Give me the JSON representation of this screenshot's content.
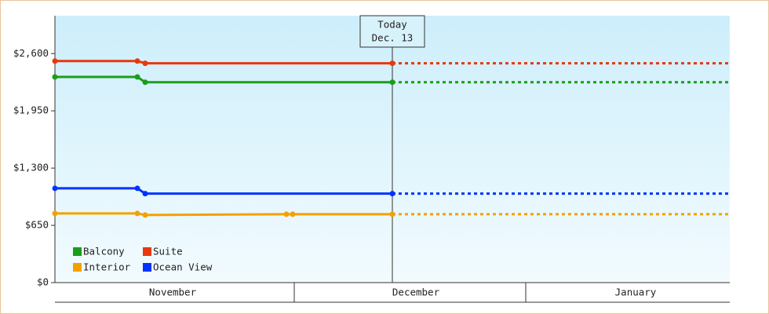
{
  "chart_data": {
    "type": "line",
    "xlim": [
      0,
      86
    ],
    "xticks": [
      {
        "value": 15,
        "label": "November"
      },
      {
        "value": 46,
        "label": "December"
      },
      {
        "value": 74,
        "label": "January"
      }
    ],
    "ylim": [
      0,
      3030
    ],
    "yticks": [
      {
        "value": 0,
        "label": "$0"
      },
      {
        "value": 650,
        "label": "$650"
      },
      {
        "value": 1300,
        "label": "$1,300"
      },
      {
        "value": 1950,
        "label": "$1,950"
      },
      {
        "value": 2600,
        "label": "$2,600"
      }
    ],
    "annotation": {
      "x": 43,
      "lines": [
        "Today",
        "Dec. 13"
      ]
    },
    "series": [
      {
        "name": "Balcony",
        "color": "#1a9e1a",
        "x": [
          0,
          10.5,
          11.5,
          43
        ],
        "values": [
          2335,
          2335,
          2275,
          2275
        ]
      },
      {
        "name": "Suite",
        "color": "#e8380d",
        "x": [
          0,
          10.5,
          11.5,
          43
        ],
        "values": [
          2515,
          2515,
          2490,
          2490
        ]
      },
      {
        "name": "Interior",
        "color": "#f5a000",
        "x": [
          0,
          10.5,
          11.5,
          29.5,
          30.3,
          43
        ],
        "values": [
          785,
          785,
          767,
          776,
          776,
          776
        ]
      },
      {
        "name": "Ocean View",
        "color": "#0033ff",
        "x": [
          0,
          10.5,
          11.5,
          43
        ],
        "values": [
          1070,
          1070,
          1010,
          1010
        ]
      }
    ]
  }
}
